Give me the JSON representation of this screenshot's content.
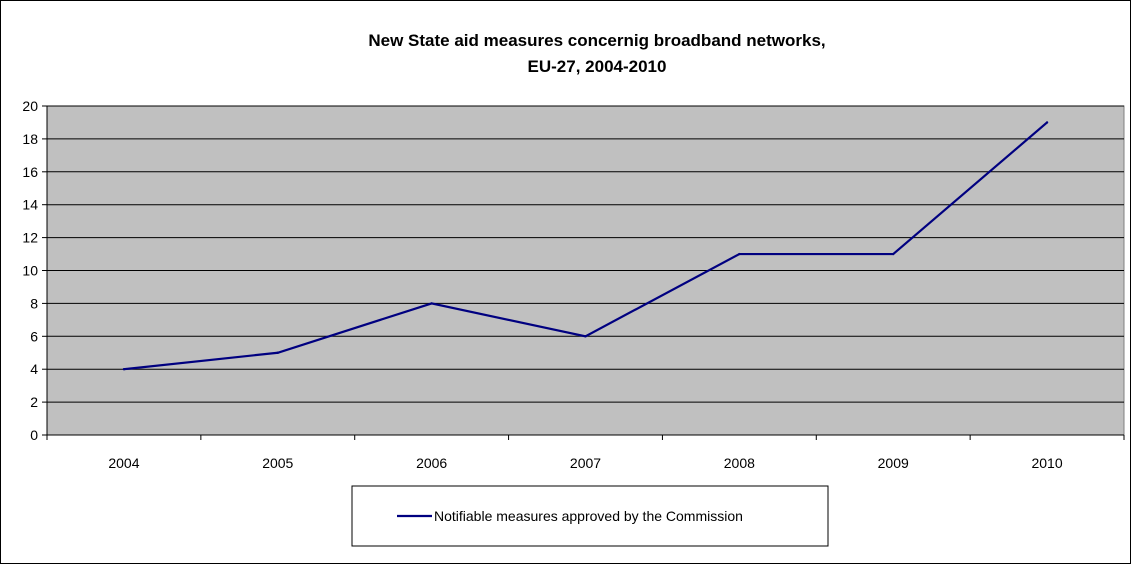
{
  "chart_data": {
    "type": "line",
    "title": "New State aid measures concernig broadband networks,",
    "subtitle": "EU-27, 2004-2010",
    "xlabel": "",
    "ylabel": "",
    "categories": [
      "2004",
      "2005",
      "2006",
      "2007",
      "2008",
      "2009",
      "2010"
    ],
    "ylim": [
      0,
      20
    ],
    "yticks": [
      0,
      2,
      4,
      6,
      8,
      10,
      12,
      14,
      16,
      18,
      20
    ],
    "grid": true,
    "legend_position": "bottom",
    "plot_background": "#c0c0c0",
    "series": [
      {
        "name": "Notifiable measures approved by the Commission",
        "color": "#000080",
        "values": [
          4,
          5,
          8,
          6,
          11,
          11,
          19
        ]
      }
    ]
  }
}
